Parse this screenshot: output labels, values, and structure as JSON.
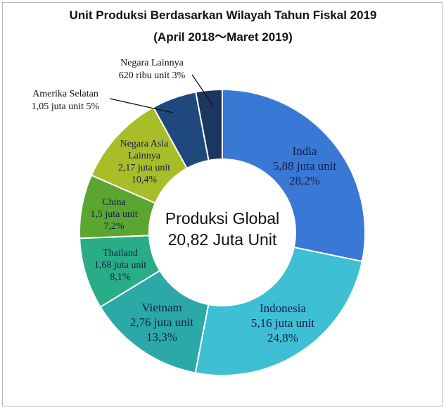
{
  "title": "Unit Produksi Berdasarkan Wilayah Tahun Fiskal 2019",
  "subtitle": "(April 2018～Maret 2019)",
  "center_text": [
    "Produksi Global",
    "20,82 Juta Unit"
  ],
  "chart_data": {
    "type": "pie",
    "variant": "donut",
    "title": "Unit Produksi Berdasarkan Wilayah Tahun Fiskal 2019",
    "subtitle": "(April 2018～Maret 2019)",
    "total_label": "Produksi Global 20,82 Juta Unit",
    "unit": "juta unit",
    "slices": [
      {
        "name": "India",
        "value": 5.88,
        "percent": 28.2,
        "color": "#3a78d6",
        "label": [
          "India",
          "5,88 juta unit",
          "28,2%"
        ],
        "text_color": "#10204a"
      },
      {
        "name": "Indonesia",
        "value": 5.16,
        "percent": 24.8,
        "color": "#3ebfd3",
        "label": [
          "Indonesia",
          "5,16 juta unit",
          "24,8%"
        ],
        "text_color": "#10204a"
      },
      {
        "name": "Vietnam",
        "value": 2.76,
        "percent": 13.3,
        "color": "#2aa9a7",
        "label": [
          "Vietnam",
          "2,76 juta unit",
          "13,3%"
        ],
        "text_color": "#10204a"
      },
      {
        "name": "Thailand",
        "value": 1.68,
        "percent": 8.1,
        "color": "#28ad86",
        "label": [
          "Thailand",
          "1,68 juta unit",
          "8,1%"
        ],
        "text_color": "#10204a"
      },
      {
        "name": "China",
        "value": 1.5,
        "percent": 7.2,
        "color": "#5ba531",
        "label": [
          "China",
          "1,5 juta unit",
          "7,2%"
        ],
        "text_color": "#10204a"
      },
      {
        "name": "Negara Asia Lainnya",
        "value": 2.17,
        "percent": 10.4,
        "color": "#a9bd28",
        "label": [
          "Negara Asia",
          "Lainnya",
          "2,17 juta unit",
          "10,4%"
        ],
        "text_color": "#10204a"
      },
      {
        "name": "Amerika Selatan",
        "value": 1.05,
        "percent": 5.0,
        "color": "#1f487d",
        "label": [
          "Amerika Selatan",
          "1,05 juta unit 5%"
        ],
        "text_color": "#111111",
        "outside": true
      },
      {
        "name": "Negara Lainnya",
        "value": 0.62,
        "percent": 3.0,
        "color": "#1b3660",
        "label": [
          "Negara Lainnya",
          "620 ribu unit 3%"
        ],
        "text_color": "#111111",
        "outside": true
      }
    ]
  }
}
